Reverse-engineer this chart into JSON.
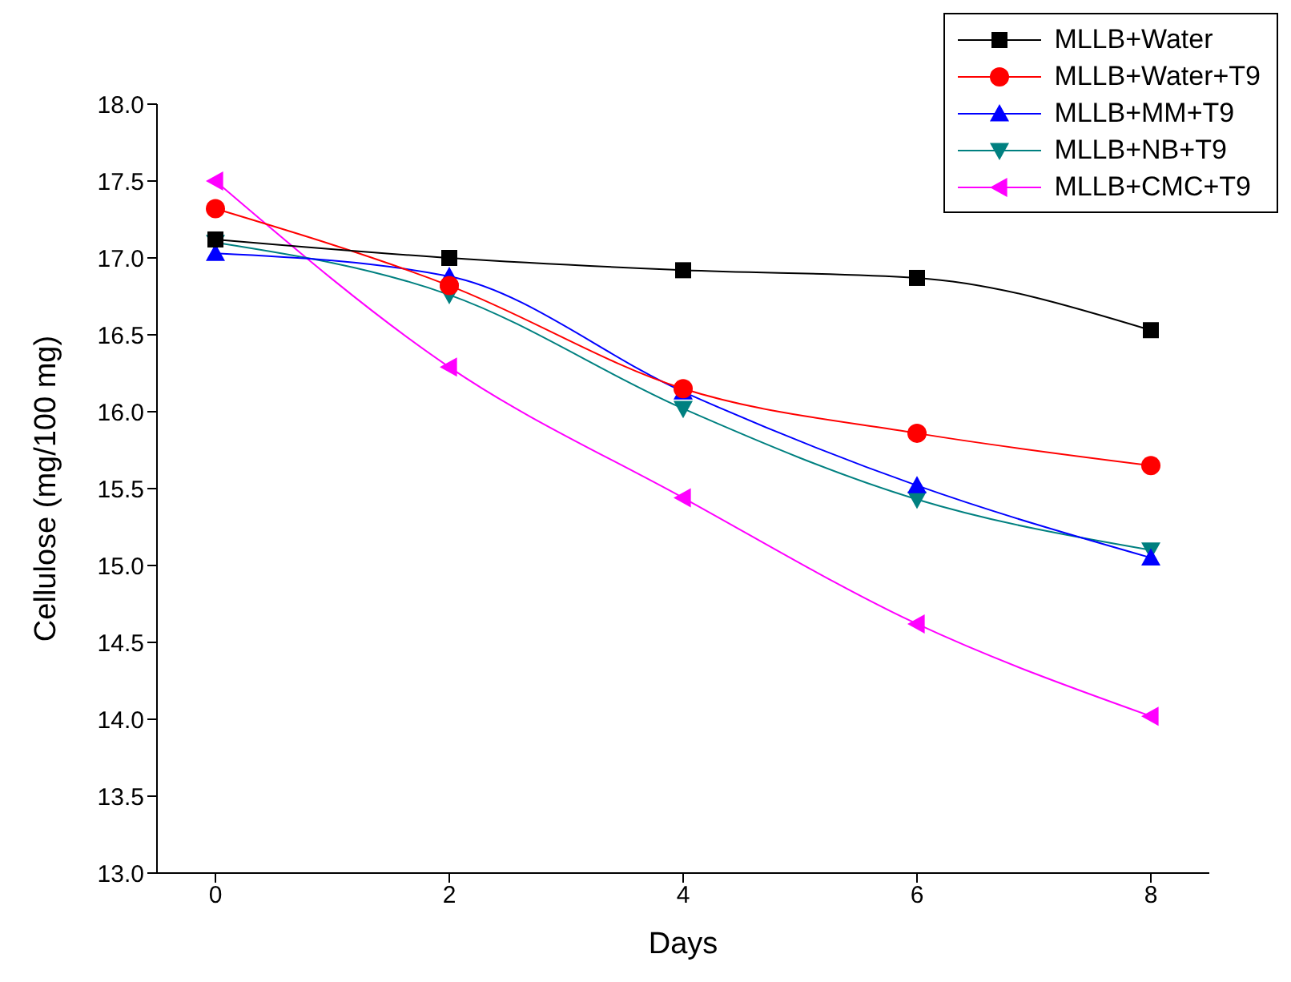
{
  "chart_data": {
    "type": "line",
    "xlabel": "Days",
    "ylabel": "Cellulose (mg/100 mg)",
    "x": [
      0,
      2,
      4,
      6,
      8
    ],
    "series": [
      {
        "name": "MLLB+Water",
        "color": "#000000",
        "marker": "square",
        "values": [
          17.12,
          17.0,
          16.92,
          16.87,
          16.53
        ]
      },
      {
        "name": "MLLB+Water+T9",
        "color": "#ff0000",
        "marker": "circle",
        "values": [
          17.32,
          16.82,
          16.15,
          15.86,
          15.65
        ]
      },
      {
        "name": "MLLB+MM+T9",
        "color": "#0000ff",
        "marker": "triangle",
        "values": [
          17.03,
          16.88,
          16.13,
          15.52,
          15.05
        ]
      },
      {
        "name": "MLLB+NB+T9",
        "color": "#008080",
        "marker": "triangle-down",
        "values": [
          17.1,
          16.76,
          16.02,
          15.43,
          15.1
        ]
      },
      {
        "name": "MLLB+CMC+T9",
        "color": "#ff00ff",
        "marker": "triangle-left",
        "values": [
          17.5,
          16.29,
          15.44,
          14.62,
          14.02
        ]
      }
    ],
    "xlim": [
      -0.5,
      8.5
    ],
    "xticks": [
      0,
      2,
      4,
      6,
      8
    ],
    "ylim": [
      13,
      18
    ],
    "yticks": [
      {
        "value": 13,
        "label": "13.0"
      },
      {
        "value": 13.5,
        "label": "13.5"
      },
      {
        "value": 14,
        "label": "14.0"
      },
      {
        "value": 14.5,
        "label": "14.5"
      },
      {
        "value": 15,
        "label": "15.0"
      },
      {
        "value": 15.5,
        "label": "15.5"
      },
      {
        "value": 16,
        "label": "16.0"
      },
      {
        "value": 16.5,
        "label": "16.5"
      },
      {
        "value": 17,
        "label": "17.0"
      },
      {
        "value": 17.5,
        "label": "17.5"
      },
      {
        "value": 18,
        "label": "18.0"
      }
    ],
    "grid": false,
    "legend": "top right",
    "line_style": "solid"
  }
}
